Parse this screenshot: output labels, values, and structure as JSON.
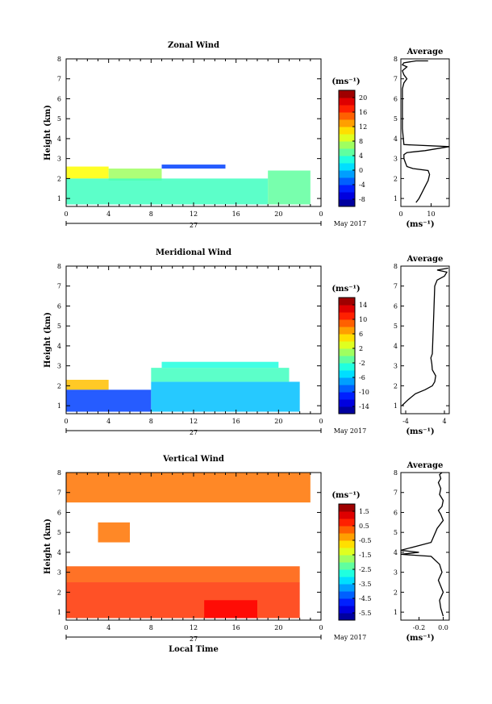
{
  "chart_data": [
    {
      "type": "heatmap",
      "title": "Zonal Wind",
      "xlabel": "",
      "ylabel": "Height (km)",
      "x_ticks": [
        "0",
        "4",
        "8",
        "12",
        "16",
        "20",
        "0"
      ],
      "y_ticks": [
        "1",
        "2",
        "3",
        "4",
        "5",
        "6",
        "7",
        "8"
      ],
      "xlim": [
        0,
        24
      ],
      "ylim": [
        0.6,
        8
      ],
      "date_label": "27",
      "month_label": "May 2017",
      "colorbar": {
        "unit": "(ms⁻¹)",
        "ticks": [
          "20",
          "16",
          "12",
          "8",
          "4",
          "0",
          "-4",
          "-8"
        ],
        "range": [
          -10,
          22
        ]
      },
      "data_regions": [
        {
          "x": [
            0,
            4
          ],
          "y": [
            2.0,
            2.6
          ],
          "value": 10
        },
        {
          "x": [
            4,
            9
          ],
          "y": [
            1.9,
            2.5
          ],
          "value": 7
        },
        {
          "x": [
            0,
            19
          ],
          "y": [
            0.7,
            2.0
          ],
          "value": 4
        },
        {
          "x": [
            19,
            23
          ],
          "y": [
            0.7,
            2.4
          ],
          "value": 5
        },
        {
          "x": [
            9,
            15
          ],
          "y": [
            2.5,
            2.7
          ],
          "value": -4
        }
      ],
      "average_profile": {
        "title": "Average",
        "xlabel": "(ms⁻¹)",
        "x_ticks": [
          "0",
          "10"
        ],
        "xlim": [
          0,
          16
        ],
        "ylim": [
          0.6,
          8
        ],
        "x": [
          5,
          6,
          7,
          8,
          9,
          9.5,
          9,
          4,
          2,
          1.5,
          1,
          1,
          2,
          8,
          16,
          1,
          0.5,
          0.5,
          1,
          2,
          1,
          0.5,
          2,
          0.5,
          1,
          5,
          9
        ],
        "y": [
          0.8,
          1.0,
          1.3,
          1.6,
          1.9,
          2.2,
          2.4,
          2.5,
          2.6,
          2.8,
          3.0,
          3.2,
          3.3,
          3.4,
          3.6,
          3.7,
          4.5,
          6.5,
          6.8,
          7.0,
          7.2,
          7.4,
          7.6,
          7.7,
          7.8,
          7.9,
          7.9
        ]
      }
    },
    {
      "type": "heatmap",
      "title": "Meridional Wind",
      "xlabel": "",
      "ylabel": "Height (km)",
      "x_ticks": [
        "0",
        "4",
        "8",
        "12",
        "16",
        "20",
        "0"
      ],
      "y_ticks": [
        "1",
        "2",
        "3",
        "4",
        "5",
        "6",
        "7",
        "8"
      ],
      "xlim": [
        0,
        24
      ],
      "ylim": [
        0.6,
        8
      ],
      "date_label": "27",
      "month_label": "May 2017",
      "colorbar": {
        "unit": "(ms⁻¹)",
        "ticks": [
          "14",
          "10",
          "6",
          "2",
          "-2",
          "-6",
          "-10",
          "-14"
        ],
        "range": [
          -16,
          16
        ]
      },
      "data_regions": [
        {
          "x": [
            0,
            4
          ],
          "y": [
            1.8,
            2.3
          ],
          "value": 6
        },
        {
          "x": [
            0,
            8
          ],
          "y": [
            0.7,
            1.8
          ],
          "value": -10
        },
        {
          "x": [
            8,
            22
          ],
          "y": [
            0.7,
            2.2
          ],
          "value": -6
        },
        {
          "x": [
            8,
            21
          ],
          "y": [
            2.2,
            2.9
          ],
          "value": -2
        },
        {
          "x": [
            9,
            20
          ],
          "y": [
            2.9,
            3.2
          ],
          "value": -3
        }
      ],
      "average_profile": {
        "title": "Average",
        "xlabel": "(ms⁻¹)",
        "x_ticks": [
          "-4",
          "4"
        ],
        "xlim": [
          -5,
          5
        ],
        "ylim": [
          0.6,
          8
        ],
        "x": [
          -4.8,
          -3.5,
          -2,
          0,
          1.5,
          2,
          2.2,
          1.5,
          1.4,
          1.2,
          1.5,
          1.8,
          2,
          2.5,
          4,
          4.5,
          2.5,
          4.8
        ],
        "y": [
          1.0,
          1.3,
          1.6,
          1.8,
          2.0,
          2.2,
          2.5,
          2.8,
          3.1,
          3.4,
          3.6,
          5.6,
          7.0,
          7.3,
          7.5,
          7.7,
          7.8,
          7.9
        ]
      }
    },
    {
      "type": "heatmap",
      "title": "Vertical Wind",
      "xlabel": "Local Time",
      "ylabel": "Height (km)",
      "x_ticks": [
        "0",
        "4",
        "8",
        "12",
        "16",
        "20",
        "0"
      ],
      "y_ticks": [
        "1",
        "2",
        "3",
        "4",
        "5",
        "6",
        "7",
        "8"
      ],
      "xlim": [
        0,
        24
      ],
      "ylim": [
        0.6,
        8
      ],
      "date_label": "27",
      "month_label": "May 2017",
      "colorbar": {
        "unit": "(ms⁻¹)",
        "ticks": [
          "1.5",
          "0.5",
          "-0.5",
          "-1.5",
          "-2.5",
          "-3.5",
          "-4.5",
          "-5.5"
        ],
        "range": [
          -6,
          2
        ]
      },
      "data_regions": [
        {
          "x": [
            0,
            22
          ],
          "y": [
            0.7,
            2.5
          ],
          "value": 0.6
        },
        {
          "x": [
            13,
            18
          ],
          "y": [
            0.7,
            1.6
          ],
          "value": 1.0
        },
        {
          "x": [
            0,
            22
          ],
          "y": [
            2.5,
            3.3
          ],
          "value": 0.3
        },
        {
          "x": [
            0,
            23
          ],
          "y": [
            6.5,
            8.0
          ],
          "value": 0.1
        },
        {
          "x": [
            3,
            6
          ],
          "y": [
            4.5,
            5.5
          ],
          "value": 0.1
        }
      ],
      "average_profile": {
        "title": "Average",
        "xlabel": "(ms⁻¹)",
        "x_ticks": [
          "-0.2",
          "0.0"
        ],
        "xlim": [
          -0.35,
          0.05
        ],
        "ylim": [
          0.6,
          8
        ],
        "x": [
          0.0,
          -0.02,
          -0.03,
          0.0,
          -0.02,
          -0.04,
          -0.01,
          -0.03,
          -0.1,
          -0.35,
          -0.2,
          -0.4,
          -0.1,
          -0.05,
          0.0,
          -0.02,
          -0.04,
          -0.01,
          0.0,
          -0.03,
          -0.02,
          -0.04,
          -0.02,
          -0.03,
          -0.01
        ],
        "y": [
          0.8,
          1.2,
          1.6,
          2.0,
          2.3,
          2.6,
          3.0,
          3.4,
          3.8,
          3.9,
          4.0,
          4.1,
          4.5,
          5.2,
          5.6,
          5.9,
          6.1,
          6.3,
          6.6,
          6.9,
          7.2,
          7.5,
          7.7,
          7.9,
          8.0
        ]
      }
    }
  ]
}
